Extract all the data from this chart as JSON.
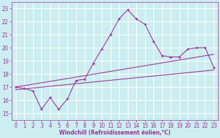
{
  "xlabel": "Windchill (Refroidissement éolien,°C)",
  "bg_color": "#cceef0",
  "grid_color": "#ffffff",
  "line_color": "#993399",
  "x_ticks": [
    0,
    1,
    2,
    3,
    4,
    5,
    6,
    7,
    8,
    9,
    10,
    11,
    12,
    13,
    14,
    15,
    16,
    17,
    18,
    19,
    20,
    21,
    22,
    23
  ],
  "y_ticks": [
    15,
    16,
    17,
    18,
    19,
    20,
    21,
    22,
    23
  ],
  "ylim": [
    14.5,
    23.5
  ],
  "xlim": [
    -0.5,
    23.5
  ],
  "series1_x": [
    0,
    1,
    2,
    3,
    4,
    5,
    6,
    7,
    8,
    9,
    10,
    11,
    12,
    13,
    14,
    15,
    16,
    17,
    18,
    19,
    20,
    21,
    22,
    23
  ],
  "series1_y": [
    17.0,
    16.9,
    16.7,
    15.3,
    16.2,
    15.3,
    16.1,
    17.5,
    17.6,
    18.8,
    19.9,
    21.0,
    22.2,
    22.9,
    22.2,
    21.8,
    20.5,
    19.4,
    19.3,
    19.3,
    19.9,
    20.0,
    20.0,
    18.5
  ],
  "series2_x": [
    0,
    23
  ],
  "series2_y": [
    17.0,
    19.5
  ],
  "series3_x": [
    0,
    23
  ],
  "series3_y": [
    16.8,
    18.3
  ],
  "tick_fontsize": 5.5,
  "xlabel_fontsize": 5.5
}
